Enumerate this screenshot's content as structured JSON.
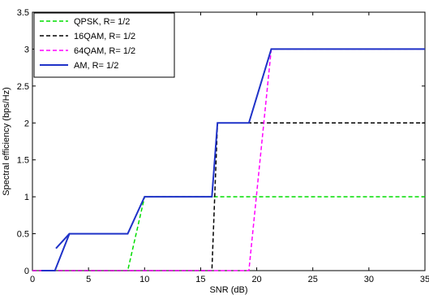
{
  "chart_data": {
    "type": "line",
    "title": "",
    "xlabel": "SNR (dB)",
    "ylabel": "Spectral efficiency (bps/Hz)",
    "xlim": [
      0,
      35
    ],
    "ylim": [
      0,
      3.5
    ],
    "xticks": [
      0,
      5,
      10,
      15,
      20,
      25,
      30,
      35
    ],
    "yticks": [
      0,
      0.5,
      1,
      1.5,
      2,
      2.5,
      3,
      3.5
    ],
    "grid": false,
    "legend_position": "top-left",
    "series": [
      {
        "name": "QPSK, R= 1/2",
        "color": "#00dd00",
        "dash": "dashed",
        "points": [
          [
            0,
            0
          ],
          [
            8.5,
            0
          ],
          [
            10,
            1
          ],
          [
            35,
            1
          ]
        ]
      },
      {
        "name": "16QAM, R= 1/2",
        "color": "#000000",
        "dash": "dashed",
        "points": [
          [
            0,
            0
          ],
          [
            16,
            0
          ],
          [
            16.5,
            2
          ],
          [
            35,
            2
          ]
        ]
      },
      {
        "name": "64QAM, R= 1/2",
        "color": "#ff00ff",
        "dash": "dashed",
        "points": [
          [
            0,
            0
          ],
          [
            19.3,
            0
          ],
          [
            21.3,
            3
          ],
          [
            35,
            3
          ]
        ]
      },
      {
        "name": "AM, R= 1/2",
        "color": "#1f32c8",
        "dash": "solid",
        "points": [
          [
            0.8,
            0
          ],
          [
            2,
            0
          ],
          [
            3.3,
            0.5
          ],
          [
            8.5,
            0.5
          ],
          [
            10,
            1
          ],
          [
            16,
            1
          ],
          [
            16.5,
            2
          ],
          [
            19.3,
            2
          ],
          [
            21.3,
            3
          ],
          [
            35,
            3
          ]
        ]
      },
      {
        "name": "",
        "color": "#1f32c8",
        "dash": "solid",
        "points": [
          [
            2.1,
            0.3
          ],
          [
            3.3,
            0.5
          ]
        ]
      }
    ]
  }
}
